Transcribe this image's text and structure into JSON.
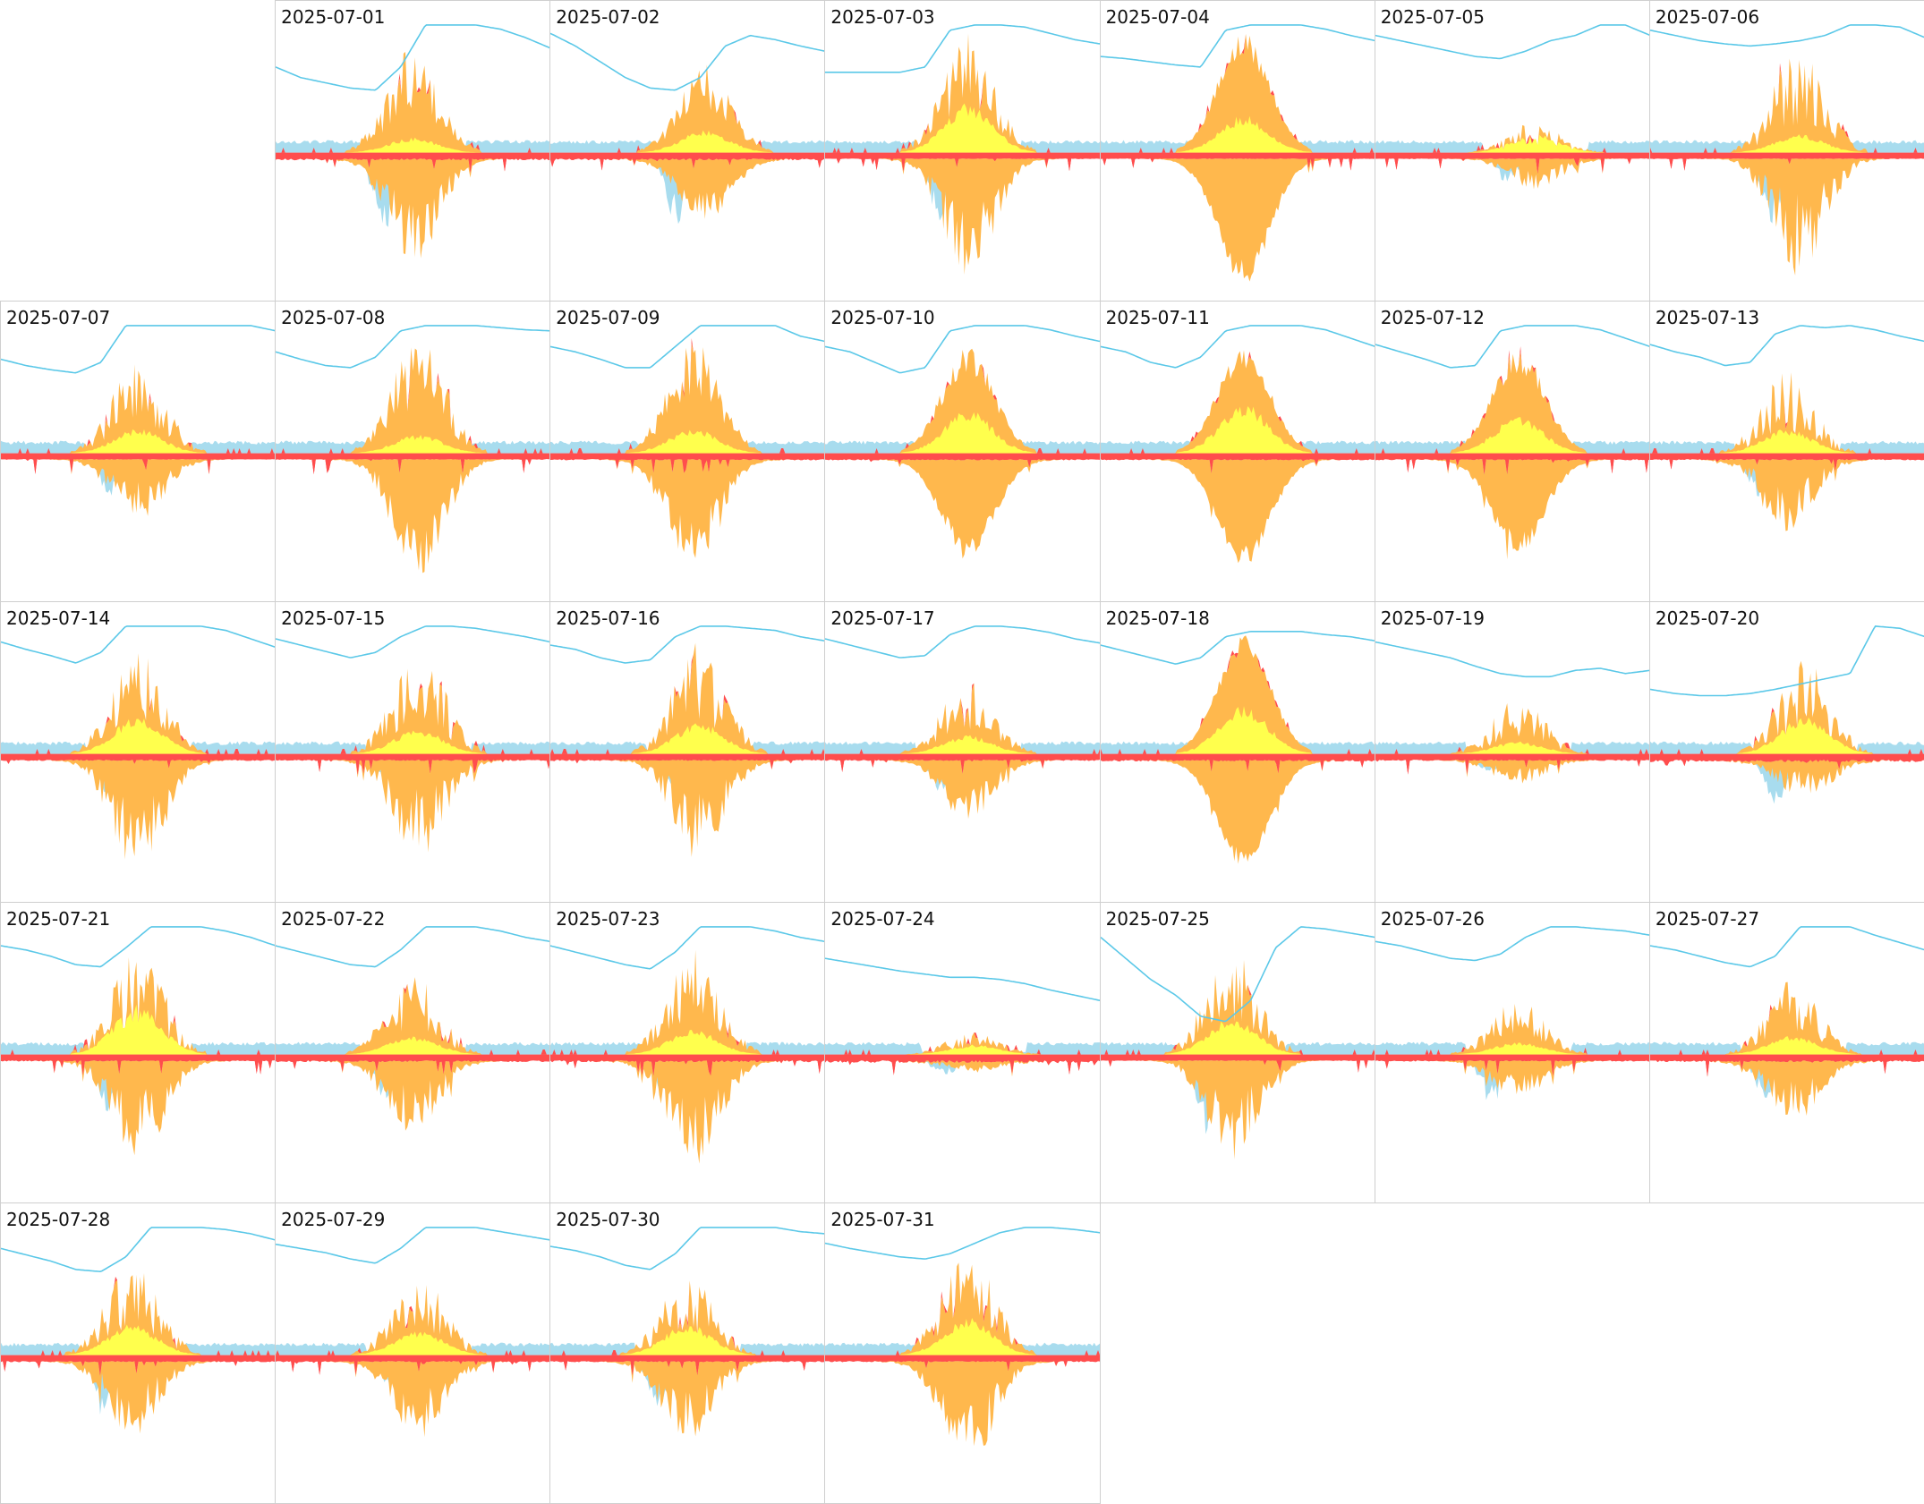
{
  "chart_data": {
    "type": "area",
    "layout": "calendar-grid",
    "columns": 7,
    "rows": 5,
    "first_column_offset": 1,
    "colors": {
      "solar_orange": "#ffb84d",
      "solar_yellow": "#ffff4d",
      "grid_red": "#ff4d4d",
      "grid_light_red": "#ff9999",
      "battery_blue": "#a8dcee",
      "soc_line": "#5bc8e8",
      "border": "#cfcfcf"
    },
    "series_note_ranges": {
      "upper_scale_max": 1.0,
      "lower_scale_max": 1.0,
      "soc_range": [
        0,
        100
      ]
    },
    "days": [
      {
        "date": "2025-07-01",
        "solar": 0.85,
        "self": 0.12,
        "export": 0.85,
        "batt": 0.6,
        "noise": 0.8,
        "night_in": 0.3,
        "soc": [
          60,
          50,
          45,
          40,
          38,
          60,
          100,
          100,
          100,
          96,
          88,
          78
        ],
        "peak_hr": 12
      },
      {
        "date": "2025-07-02",
        "solar": 0.7,
        "self": 0.18,
        "export": 0.5,
        "batt": 0.55,
        "noise": 0.6,
        "night_in": 0.3,
        "soc": [
          92,
          80,
          65,
          50,
          40,
          38,
          50,
          80,
          90,
          86,
          80,
          75
        ],
        "peak_hr": 13.5
      },
      {
        "date": "2025-07-03",
        "solar": 0.95,
        "self": 0.4,
        "export": 0.95,
        "batt": 0.5,
        "noise": 0.75,
        "night_in": 0.1,
        "soc": [
          55,
          55,
          55,
          55,
          60,
          95,
          100,
          100,
          98,
          92,
          86,
          82
        ],
        "peak_hr": 12.5
      },
      {
        "date": "2025-07-04",
        "solar": 0.95,
        "self": 0.3,
        "export": 1.0,
        "batt": 0.3,
        "noise": 0.25,
        "night_in": 0.1,
        "soc": [
          70,
          68,
          65,
          62,
          60,
          95,
          100,
          100,
          100,
          96,
          90,
          85
        ],
        "peak_hr": 12.5
      },
      {
        "date": "2025-07-05",
        "solar": 0.25,
        "self": 0.15,
        "export": 0.25,
        "batt": 0.2,
        "noise": 0.9,
        "night_in": 0.1,
        "soc": [
          90,
          85,
          80,
          75,
          70,
          68,
          75,
          85,
          90,
          100,
          100,
          90
        ],
        "peak_hr": 14
      },
      {
        "date": "2025-07-06",
        "solar": 0.9,
        "self": 0.15,
        "export": 0.95,
        "batt": 0.6,
        "noise": 0.9,
        "night_in": 0.1,
        "soc": [
          95,
          90,
          85,
          82,
          80,
          82,
          85,
          90,
          100,
          100,
          98,
          88
        ],
        "peak_hr": 13
      },
      {
        "date": "2025-07-07",
        "solar": 0.75,
        "self": 0.2,
        "export": 0.5,
        "batt": 0.3,
        "noise": 0.8,
        "night_in": 0.1,
        "soc": [
          68,
          62,
          58,
          55,
          65,
          100,
          100,
          100,
          100,
          100,
          100,
          95
        ],
        "peak_hr": 12
      },
      {
        "date": "2025-07-08",
        "solar": 0.95,
        "self": 0.15,
        "export": 0.95,
        "batt": 0.3,
        "noise": 0.75,
        "night_in": 0.1,
        "soc": [
          75,
          68,
          62,
          60,
          70,
          95,
          100,
          100,
          100,
          98,
          96,
          95
        ],
        "peak_hr": 12.5
      },
      {
        "date": "2025-07-09",
        "solar": 0.9,
        "self": 0.2,
        "export": 0.85,
        "batt": 0.3,
        "noise": 0.6,
        "night_in": 0.2,
        "soc": [
          80,
          75,
          68,
          60,
          60,
          80,
          100,
          100,
          100,
          100,
          90,
          85
        ],
        "peak_hr": 12.5
      },
      {
        "date": "2025-07-10",
        "solar": 0.85,
        "self": 0.35,
        "export": 0.8,
        "batt": 0.3,
        "noise": 0.3,
        "night_in": 0.2,
        "soc": [
          80,
          75,
          65,
          55,
          60,
          95,
          100,
          100,
          100,
          96,
          90,
          85
        ],
        "peak_hr": 12.5
      },
      {
        "date": "2025-07-11",
        "solar": 0.85,
        "self": 0.4,
        "export": 0.85,
        "batt": 0.3,
        "noise": 0.25,
        "night_in": 0.2,
        "soc": [
          80,
          75,
          65,
          60,
          70,
          95,
          100,
          100,
          100,
          96,
          88,
          80
        ],
        "peak_hr": 12.5
      },
      {
        "date": "2025-07-12",
        "solar": 0.85,
        "self": 0.3,
        "export": 0.75,
        "batt": 0.3,
        "noise": 0.3,
        "night_in": 0.2,
        "soc": [
          82,
          75,
          68,
          60,
          62,
          95,
          100,
          100,
          100,
          96,
          88,
          80
        ],
        "peak_hr": 12.5
      },
      {
        "date": "2025-07-13",
        "solar": 0.65,
        "self": 0.2,
        "export": 0.6,
        "batt": 0.3,
        "noise": 0.9,
        "night_in": 0.2,
        "soc": [
          82,
          75,
          70,
          62,
          65,
          92,
          100,
          98,
          100,
          96,
          90,
          85
        ],
        "peak_hr": 12
      },
      {
        "date": "2025-07-14",
        "solar": 0.85,
        "self": 0.3,
        "export": 0.9,
        "batt": 0.3,
        "noise": 0.8,
        "night_in": 0.2,
        "soc": [
          85,
          78,
          72,
          65,
          75,
          100,
          100,
          100,
          100,
          96,
          88,
          80
        ],
        "peak_hr": 12
      },
      {
        "date": "2025-07-15",
        "solar": 0.85,
        "self": 0.2,
        "export": 0.8,
        "batt": 0.25,
        "noise": 0.9,
        "night_in": 0.2,
        "soc": [
          88,
          82,
          76,
          70,
          75,
          90,
          100,
          100,
          98,
          94,
          90,
          85
        ],
        "peak_hr": 12.5
      },
      {
        "date": "2025-07-16",
        "solar": 0.9,
        "self": 0.25,
        "export": 0.8,
        "batt": 0.2,
        "noise": 0.9,
        "night_in": 0.2,
        "soc": [
          82,
          78,
          70,
          65,
          68,
          90,
          100,
          100,
          98,
          96,
          90,
          86
        ],
        "peak_hr": 13
      },
      {
        "date": "2025-07-17",
        "solar": 0.6,
        "self": 0.15,
        "export": 0.5,
        "batt": 0.25,
        "noise": 0.8,
        "night_in": 0.2,
        "soc": [
          88,
          82,
          76,
          70,
          72,
          92,
          100,
          100,
          98,
          94,
          88,
          84
        ],
        "peak_hr": 12.5
      },
      {
        "date": "2025-07-18",
        "solar": 0.95,
        "self": 0.4,
        "export": 0.85,
        "batt": 0.15,
        "noise": 0.2,
        "night_in": 0.3,
        "soc": [
          82,
          76,
          70,
          64,
          70,
          90,
          95,
          95,
          95,
          92,
          90,
          86
        ],
        "peak_hr": 12.5
      },
      {
        "date": "2025-07-19",
        "solar": 0.45,
        "self": 0.1,
        "export": 0.2,
        "batt": 0.1,
        "noise": 0.9,
        "night_in": 0.2,
        "soc": [
          85,
          80,
          75,
          70,
          62,
          55,
          52,
          52,
          58,
          60,
          55,
          58
        ],
        "peak_hr": 12.5
      },
      {
        "date": "2025-07-20",
        "solar": 0.75,
        "self": 0.3,
        "export": 0.3,
        "batt": 0.4,
        "noise": 0.9,
        "night_in": 0.4,
        "soc": [
          40,
          36,
          34,
          34,
          36,
          40,
          45,
          50,
          55,
          100,
          98,
          90
        ],
        "peak_hr": 13.5
      },
      {
        "date": "2025-07-21",
        "solar": 0.85,
        "self": 0.4,
        "export": 0.8,
        "batt": 0.45,
        "noise": 0.9,
        "night_in": 0.2,
        "soc": [
          82,
          78,
          72,
          64,
          62,
          80,
          100,
          100,
          100,
          96,
          90,
          82
        ],
        "peak_hr": 12
      },
      {
        "date": "2025-07-22",
        "solar": 0.65,
        "self": 0.15,
        "export": 0.6,
        "batt": 0.3,
        "noise": 0.9,
        "night_in": 0.3,
        "soc": [
          82,
          76,
          70,
          64,
          62,
          78,
          100,
          100,
          100,
          96,
          90,
          86
        ],
        "peak_hr": 12
      },
      {
        "date": "2025-07-23",
        "solar": 0.85,
        "self": 0.2,
        "export": 0.85,
        "batt": 0.3,
        "noise": 0.8,
        "night_in": 0.3,
        "soc": [
          82,
          76,
          70,
          64,
          60,
          76,
          100,
          100,
          100,
          96,
          90,
          86
        ],
        "peak_hr": 12.5
      },
      {
        "date": "2025-07-24",
        "solar": 0.2,
        "self": 0.08,
        "export": 0.08,
        "batt": 0.12,
        "noise": 0.9,
        "night_in": 0.4,
        "soc": [
          70,
          66,
          62,
          58,
          55,
          52,
          52,
          50,
          46,
          40,
          35,
          30
        ],
        "peak_hr": 13
      },
      {
        "date": "2025-07-25",
        "solar": 0.85,
        "self": 0.3,
        "export": 0.8,
        "batt": 0.6,
        "noise": 0.85,
        "night_in": 0.1,
        "soc": [
          90,
          70,
          50,
          35,
          15,
          10,
          30,
          80,
          100,
          98,
          94,
          90
        ],
        "peak_hr": 11.5
      },
      {
        "date": "2025-07-26",
        "solar": 0.45,
        "self": 0.1,
        "export": 0.3,
        "batt": 0.3,
        "noise": 0.8,
        "night_in": 0.2,
        "soc": [
          86,
          82,
          76,
          70,
          68,
          74,
          90,
          100,
          100,
          98,
          96,
          92
        ],
        "peak_hr": 12.5
      },
      {
        "date": "2025-07-27",
        "solar": 0.6,
        "self": 0.15,
        "export": 0.5,
        "batt": 0.3,
        "noise": 0.85,
        "night_in": 0.3,
        "soc": [
          82,
          78,
          72,
          66,
          62,
          72,
          100,
          100,
          100,
          92,
          85,
          78
        ],
        "peak_hr": 12.5
      },
      {
        "date": "2025-07-28",
        "solar": 0.75,
        "self": 0.25,
        "export": 0.6,
        "batt": 0.4,
        "noise": 0.85,
        "night_in": 0.2,
        "soc": [
          80,
          74,
          68,
          60,
          58,
          72,
          100,
          100,
          100,
          98,
          94,
          88
        ],
        "peak_hr": 11.5
      },
      {
        "date": "2025-07-29",
        "solar": 0.65,
        "self": 0.2,
        "export": 0.65,
        "batt": 0.25,
        "noise": 0.85,
        "night_in": 0.2,
        "soc": [
          84,
          80,
          76,
          70,
          66,
          80,
          100,
          100,
          100,
          96,
          92,
          88
        ],
        "peak_hr": 12.5
      },
      {
        "date": "2025-07-30",
        "solar": 0.65,
        "self": 0.25,
        "export": 0.65,
        "batt": 0.4,
        "noise": 0.85,
        "night_in": 0.2,
        "soc": [
          82,
          78,
          72,
          64,
          60,
          75,
          100,
          100,
          100,
          100,
          96,
          94
        ],
        "peak_hr": 12
      },
      {
        "date": "2025-07-31",
        "solar": 0.85,
        "self": 0.3,
        "export": 0.85,
        "batt": 0.3,
        "noise": 0.8,
        "night_in": 0.2,
        "soc": [
          85,
          80,
          76,
          72,
          70,
          75,
          85,
          95,
          100,
          100,
          98,
          95
        ],
        "peak_hr": 12.5
      }
    ]
  }
}
